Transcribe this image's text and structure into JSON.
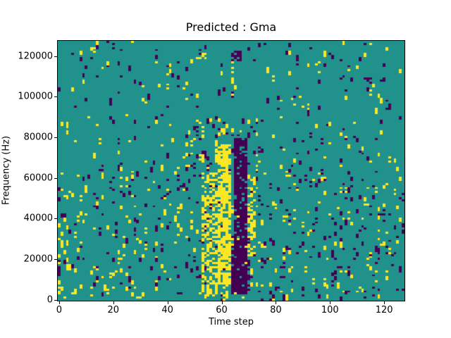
{
  "chart_data": {
    "type": "heatmap",
    "title": "Predicted : Gma",
    "xlabel": "Time step",
    "ylabel": "Frequency (Hz)",
    "x_ticks": [
      0,
      20,
      40,
      60,
      80,
      100,
      120
    ],
    "x_tick_labels": [
      "0",
      "20",
      "40",
      "60",
      "80",
      "100",
      "120"
    ],
    "y_ticks": [
      0,
      20000,
      40000,
      60000,
      80000,
      100000,
      120000
    ],
    "y_tick_labels": [
      "0",
      "20000",
      "40000",
      "60000",
      "80000",
      "100000",
      "120000"
    ],
    "grid_size": [
      128,
      128
    ],
    "x_range": [
      -0.5,
      127.5
    ],
    "y_range_hz": [
      -500,
      127500
    ],
    "cell_hz": 1000,
    "grid_on": false,
    "legend": null,
    "colors": {
      "-1": "#440154",
      "0": "#21918c",
      "1": "#fde725"
    },
    "background_color": "#ffffff",
    "pattern": {
      "background_value": 0,
      "seed": 1337,
      "noise_run": [
        0.4,
        0.12
      ],
      "noise_regions": [
        {
          "cols": [
            0,
            127
          ],
          "rows": [
            64,
            127
          ],
          "value": -1,
          "density": 0.015
        },
        {
          "cols": [
            0,
            127
          ],
          "rows": [
            64,
            127
          ],
          "value": 1,
          "density": 0.015
        },
        {
          "cols": [
            0,
            52
          ],
          "rows": [
            0,
            63
          ],
          "value": 1,
          "density": 0.035
        },
        {
          "cols": [
            0,
            52
          ],
          "rows": [
            0,
            63
          ],
          "value": -1,
          "density": 0.028
        },
        {
          "cols": [
            0,
            3
          ],
          "rows": [
            0,
            45
          ],
          "value": 1,
          "density": 0.1
        },
        {
          "cols": [
            53,
            75
          ],
          "rows": [
            0,
            63
          ],
          "value": -1,
          "density": 0.04
        },
        {
          "cols": [
            53,
            75
          ],
          "rows": [
            0,
            63
          ],
          "value": 1,
          "density": 0.05
        },
        {
          "cols": [
            76,
            127
          ],
          "rows": [
            0,
            63
          ],
          "value": -1,
          "density": 0.045
        },
        {
          "cols": [
            76,
            127
          ],
          "rows": [
            0,
            63
          ],
          "value": 1,
          "density": 0.03
        },
        {
          "cols": [
            46,
            75
          ],
          "rows": [
            64,
            88
          ],
          "value": 1,
          "density": 0.05
        },
        {
          "cols": [
            46,
            75
          ],
          "rows": [
            64,
            88
          ],
          "value": -1,
          "density": 0.05
        }
      ],
      "clusters": [
        {
          "cols": [
            53,
            58
          ],
          "rows": [
            2,
            62
          ],
          "value": 1,
          "density": 0.45
        },
        {
          "cols": [
            59,
            63
          ],
          "rows": [
            8,
            76
          ],
          "value": 1,
          "density": 0.75
        },
        {
          "cols": [
            60,
            63
          ],
          "rows": [
            0,
            8
          ],
          "value": 1,
          "density": 0.3
        },
        {
          "cols": [
            64,
            70
          ],
          "rows": [
            3,
            30
          ],
          "value": -1,
          "density": 0.55
        },
        {
          "cols": [
            65,
            69
          ],
          "rows": [
            3,
            79
          ],
          "value": -1,
          "density": 0.85
        },
        {
          "cols": [
            70,
            72
          ],
          "rows": [
            22,
            60
          ],
          "value": 1,
          "density": 0.5
        },
        {
          "cols": [
            52,
            54
          ],
          "rows": [
            119,
            121
          ],
          "value": 1,
          "density": 0.7
        },
        {
          "cols": [
            64,
            67
          ],
          "rows": [
            118,
            122
          ],
          "value": -1,
          "density": 0.6
        }
      ]
    }
  }
}
